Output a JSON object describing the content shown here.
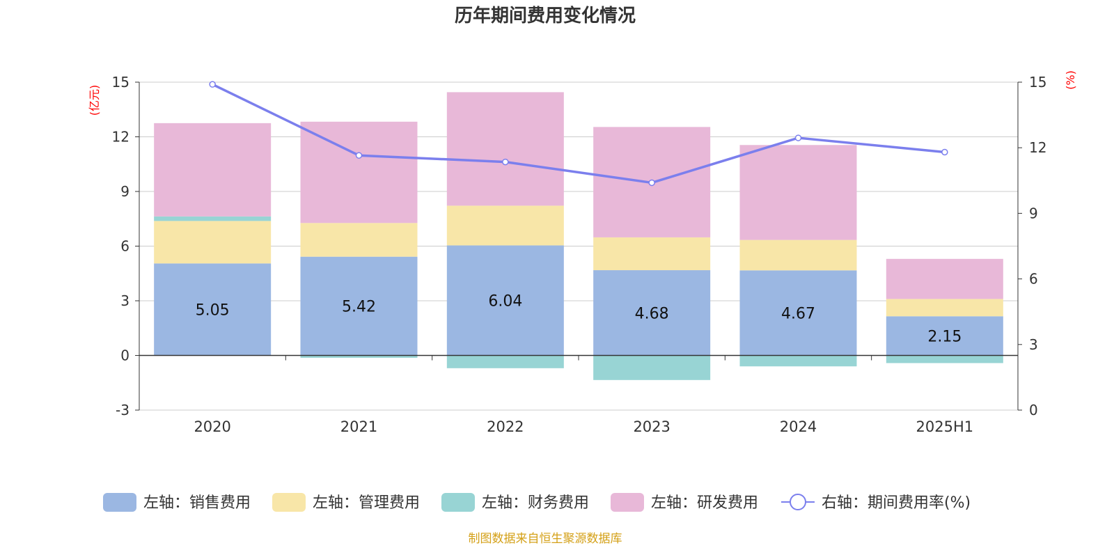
{
  "chart_data": {
    "type": "bar",
    "title": "历年期间费用变化情况",
    "categories": [
      "2020",
      "2021",
      "2022",
      "2023",
      "2024",
      "2025H1"
    ],
    "left_axis": {
      "unit_label": "(亿元)",
      "ylim": [
        -3,
        15
      ],
      "ticks": [
        "15",
        "12",
        "9",
        "6",
        "3",
        "0",
        "-3"
      ]
    },
    "right_axis": {
      "unit_label": "(%)",
      "ylim": [
        0,
        15
      ],
      "ticks": [
        "15",
        "12",
        "9",
        "6",
        "3",
        "0"
      ]
    },
    "series": [
      {
        "name": "左轴：销售费用",
        "axis": "left",
        "stack": true,
        "color": "#9bb7e2",
        "values": [
          5.05,
          5.42,
          6.04,
          4.68,
          4.67,
          2.15
        ]
      },
      {
        "name": "左轴：管理费用",
        "axis": "left",
        "stack": true,
        "color": "#f8e6a8",
        "values": [
          2.33,
          1.85,
          2.18,
          1.8,
          1.67,
          0.95
        ]
      },
      {
        "name": "左轴：财务费用",
        "axis": "left",
        "stack": true,
        "color": "#98d4d4",
        "values": [
          0.25,
          -0.13,
          -0.7,
          -1.35,
          -0.6,
          -0.42
        ]
      },
      {
        "name": "左轴：研发费用",
        "axis": "left",
        "stack": true,
        "color": "#e8b8d8",
        "values": [
          5.12,
          5.56,
          6.23,
          6.06,
          5.21,
          2.2
        ]
      },
      {
        "name": "右轴：期间费用率(%)",
        "axis": "right",
        "type": "line",
        "color": "#7b7fed",
        "values": [
          14.9,
          11.65,
          11.35,
          10.4,
          12.45,
          11.8
        ]
      }
    ],
    "data_labels": [
      "5.05",
      "5.42",
      "6.04",
      "4.68",
      "4.67",
      "2.15"
    ],
    "grid": true,
    "legend_position": "bottom"
  },
  "source_note": "制图数据来自恒生聚源数据库",
  "colors": {
    "title": "#333333",
    "unit_label": "#ff0000",
    "source_note": "#d4a017",
    "grid": "#cccccc",
    "axis": "#333333"
  }
}
